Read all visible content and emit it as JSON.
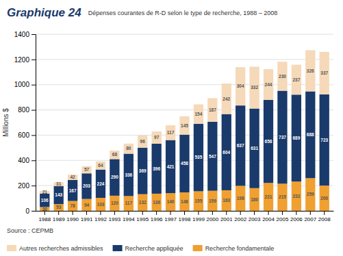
{
  "chart_data": {
    "type": "bar",
    "stacked": true,
    "title": "Graphique 24",
    "subtitle": "Dépenses courantes de R-D selon le type de recherche, 1988 – 2008",
    "ylabel": "Millions $",
    "annotations": [
      "Source : CEPMB"
    ],
    "categories": [
      "1988",
      "1989",
      "1990",
      "1991",
      "1992",
      "1993",
      "1994",
      "1995",
      "1996",
      "1997",
      "1998",
      "1999",
      "2000",
      "2001",
      "2002",
      "2003",
      "2004",
      "2005",
      "2006",
      "2007",
      "2008"
    ],
    "series": [
      {
        "name": "Recherche fondamentale",
        "color": "#f0a030",
        "values": [
          30,
          53,
          78,
          94,
          103,
          120,
          117,
          132,
          136,
          140,
          146,
          155,
          159,
          163,
          198,
          180,
          221,
          215,
          232,
          259,
          200
        ]
      },
      {
        "name": "Recherche appliquée",
        "color": "#1a3a6b",
        "values": [
          106,
          143,
          167,
          203,
          224,
          290,
          336,
          369,
          396,
          421,
          458,
          535,
          547,
          604,
          637,
          631,
          658,
          737,
          689,
          688,
          723
        ]
      },
      {
        "name": "Autres recherches admissibles",
        "color": "#f5d9b8",
        "values": [
          21,
          31,
          42,
          57,
          64,
          68,
          80,
          96,
          97,
          117,
          145,
          154,
          187,
          242,
          304,
          332,
          244,
          230,
          237,
          326,
          337
        ]
      }
    ],
    "ylim": [
      0,
      1400
    ],
    "yticks": [
      0,
      200,
      400,
      600,
      800,
      1000,
      1200,
      1400
    ],
    "grid": true,
    "legend": "lower left",
    "data_labels": true
  }
}
